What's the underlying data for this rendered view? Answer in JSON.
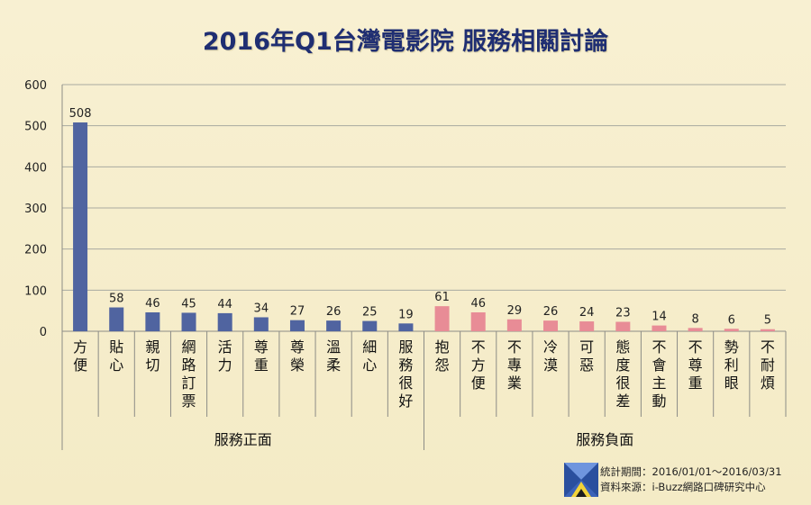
{
  "title": "2016年Q1台灣電影院 服務相關討論",
  "chart_data": {
    "type": "bar",
    "categories": [
      "方便",
      "貼心",
      "親切",
      "網路訂票",
      "活力",
      "尊重",
      "尊榮",
      "溫柔",
      "細心",
      "服務很好",
      "抱怨",
      "不方便",
      "不專業",
      "冷漠",
      "可惡",
      "態度很差",
      "不會主動",
      "不尊重",
      "勢利眼",
      "不耐煩"
    ],
    "values": [
      508,
      58,
      46,
      45,
      44,
      34,
      27,
      26,
      25,
      19,
      61,
      46,
      29,
      26,
      24,
      23,
      14,
      8,
      6,
      5
    ],
    "groups": [
      {
        "name": "服務正面",
        "count": 10,
        "color": "#5064a0"
      },
      {
        "name": "服務負面",
        "count": 10,
        "color": "#e88c96"
      }
    ],
    "ylim": [
      0,
      600
    ],
    "yticks": [
      "0",
      "100",
      "200",
      "300",
      "400",
      "500",
      "600"
    ],
    "grid": true,
    "data_labels": true,
    "legend": "none"
  },
  "footer": {
    "period": "統計期間：2016/01/01～2016/03/31",
    "source": "資料來源：i-Buzz網路口碑研究中心"
  }
}
